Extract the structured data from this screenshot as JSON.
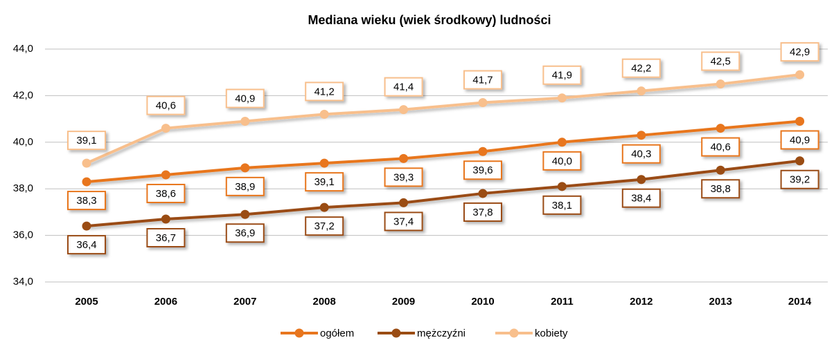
{
  "chart_data": {
    "type": "line",
    "title": "Mediana wieku (wiek środkowy) ludności",
    "categories": [
      "2005",
      "2006",
      "2007",
      "2008",
      "2009",
      "2010",
      "2011",
      "2012",
      "2013",
      "2014"
    ],
    "series": [
      {
        "name": "ogółem",
        "color": "#e8761e",
        "values": [
          38.3,
          38.6,
          38.9,
          39.1,
          39.3,
          39.6,
          40.0,
          40.3,
          40.6,
          40.9
        ],
        "value_labels": [
          "38,3",
          "38,6",
          "38,9",
          "39,1",
          "39,3",
          "39,6",
          "40,0",
          "40,3",
          "40,6",
          "40,9"
        ]
      },
      {
        "name": "mężczyźni",
        "color": "#9a4c13",
        "values": [
          36.4,
          36.7,
          36.9,
          37.2,
          37.4,
          37.8,
          38.1,
          38.4,
          38.8,
          39.2
        ],
        "value_labels": [
          "36,4",
          "36,7",
          "36,9",
          "37,2",
          "37,4",
          "37,8",
          "38,1",
          "38,4",
          "38,8",
          "39,2"
        ]
      },
      {
        "name": "kobiety",
        "color": "#f8bf8c",
        "values": [
          39.1,
          40.6,
          40.9,
          41.2,
          41.4,
          41.7,
          41.9,
          42.2,
          42.5,
          42.9
        ],
        "value_labels": [
          "39,1",
          "40,6",
          "40,9",
          "41,2",
          "41,4",
          "41,7",
          "41,9",
          "42,2",
          "42,5",
          "42,9"
        ]
      }
    ],
    "ylim": [
      34,
      44
    ],
    "yticks": [
      {
        "value": 34,
        "label": "34,0"
      },
      {
        "value": 36,
        "label": "36,0"
      },
      {
        "value": 38,
        "label": "38,0"
      },
      {
        "value": 40,
        "label": "40,0"
      },
      {
        "value": 42,
        "label": "42,0"
      },
      {
        "value": 44,
        "label": "44,0"
      }
    ],
    "grid": true,
    "legend": "bottom"
  }
}
